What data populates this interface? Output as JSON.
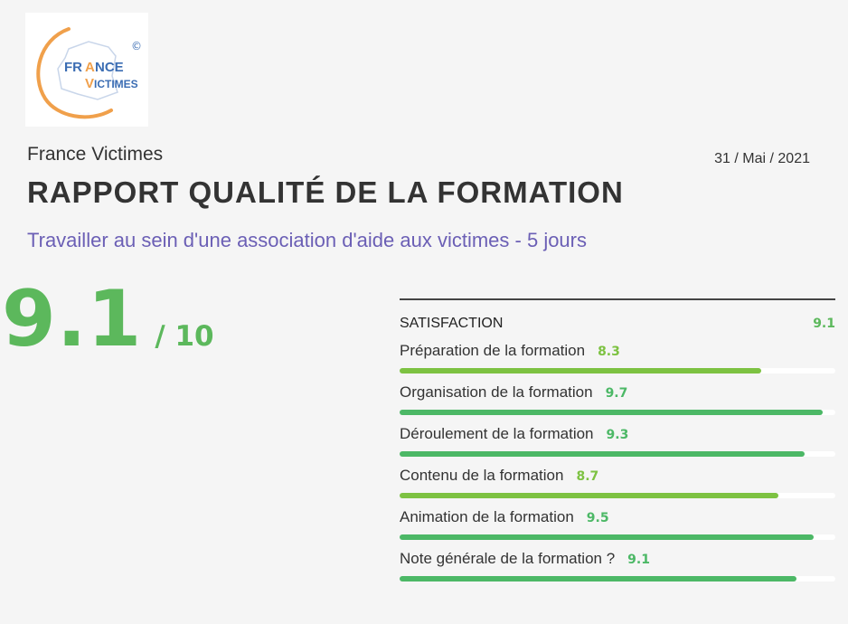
{
  "logo": {
    "text_line1": "FRANCE",
    "text_line2": "VICTIMES",
    "mark": "©"
  },
  "header": {
    "organization": "France Victimes",
    "date": "31 / Mai / 2021",
    "title": "RAPPORT QUALITÉ DE LA FORMATION",
    "subtitle": "Travailler au sein d'une association d'aide aux victimes - 5 jours"
  },
  "overall": {
    "score": "9.1",
    "max": "/ 10"
  },
  "satisfaction": {
    "title": "SATISFACTION",
    "score": "9.1",
    "criteria": [
      {
        "label": "Préparation de la formation",
        "score": "8.3",
        "fraction": 0.83,
        "color": "#7dc242"
      },
      {
        "label": "Organisation de la formation",
        "score": "9.7",
        "fraction": 0.97,
        "color": "#4cb866"
      },
      {
        "label": "Déroulement de la formation",
        "score": "9.3",
        "fraction": 0.93,
        "color": "#4cb866"
      },
      {
        "label": "Contenu de la formation",
        "score": "8.7",
        "fraction": 0.87,
        "color": "#7dc242"
      },
      {
        "label": "Animation de la formation",
        "score": "9.5",
        "fraction": 0.95,
        "color": "#4cb866"
      },
      {
        "label": "Note générale de la formation ?",
        "score": "9.1",
        "fraction": 0.91,
        "color": "#4cb866"
      }
    ]
  },
  "colors": {
    "accent_green": "#5cb85c",
    "subtitle_purple": "#6b5fb5",
    "logo_orange": "#f0a04b",
    "logo_blue": "#3b6db3"
  }
}
